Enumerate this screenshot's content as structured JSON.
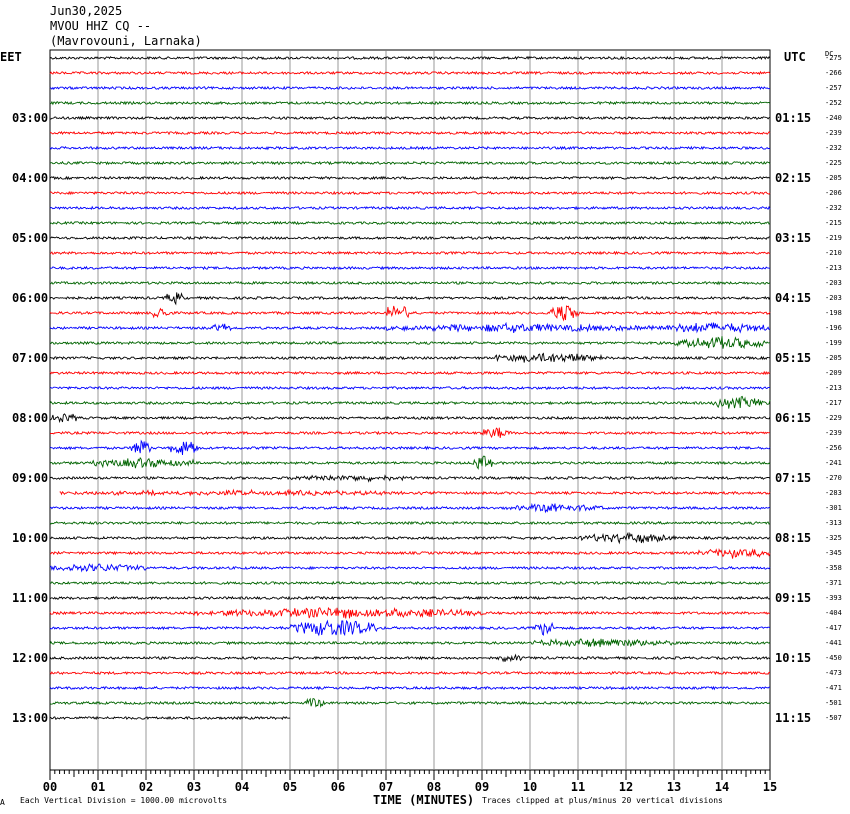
{
  "header": {
    "date": "Jun30,2025",
    "station": "MVOU HHZ CQ --",
    "location": "(Mavrovouni, Larnaka)"
  },
  "left_tz": "EET",
  "right_tz": "UTC",
  "dc_label": "DC",
  "footer": {
    "left_mark": "A",
    "division_note": "Each Vertical Division = 1000.00 microvolts",
    "xlabel": "TIME (MINUTES)",
    "clip_note": "Traces clipped at plus/minus 20 vertical divisions"
  },
  "colors": {
    "trace_cycle": [
      "#000000",
      "#ff0000",
      "#0000ff",
      "#006400"
    ],
    "grid": "#7f7f7f"
  },
  "chart_data": {
    "type": "line",
    "title": "MVOU HHZ CQ --",
    "xlabel": "TIME (MINUTES)",
    "x_ticks": [
      "00",
      "01",
      "02",
      "03",
      "04",
      "05",
      "06",
      "07",
      "08",
      "09",
      "10",
      "11",
      "12",
      "13",
      "14",
      "15"
    ],
    "xlim": [
      0,
      15
    ],
    "rows_per_hour": 4,
    "minutes_per_row": 15,
    "left_hour_labels": [
      "03:00",
      "04:00",
      "05:00",
      "06:00",
      "07:00",
      "08:00",
      "09:00",
      "10:00",
      "11:00",
      "12:00",
      "13:00"
    ],
    "right_hour_labels": [
      "01:15",
      "02:15",
      "03:15",
      "04:15",
      "05:15",
      "06:15",
      "07:15",
      "08:15",
      "09:15",
      "10:15",
      "11:15"
    ],
    "dc_offsets": [
      -275,
      -266,
      -257,
      -252,
      -240,
      -239,
      -232,
      -225,
      -205,
      -206,
      -232,
      -215,
      -219,
      -210,
      -213,
      -203,
      -203,
      -198,
      -196,
      -199,
      -205,
      -209,
      -213,
      -217,
      -229,
      -239,
      -256,
      -241,
      -270,
      -283,
      -301,
      -313,
      -325,
      -345,
      -358,
      -371,
      -393,
      -404,
      -417,
      -441,
      -450,
      -473,
      -471,
      -501,
      -507
    ],
    "last_row_end_minute": 5.0,
    "events": [
      {
        "row": 16,
        "start": 2.4,
        "end": 2.8,
        "amp": 6
      },
      {
        "row": 17,
        "start": 2.1,
        "end": 2.5,
        "amp": 7
      },
      {
        "row": 17,
        "start": 7.0,
        "end": 7.5,
        "amp": 10
      },
      {
        "row": 17,
        "start": 10.4,
        "end": 11.0,
        "amp": 9
      },
      {
        "row": 18,
        "start": 3.4,
        "end": 3.8,
        "amp": 5
      },
      {
        "row": 18,
        "start": 7.0,
        "end": 12.5,
        "amp": 4
      },
      {
        "row": 18,
        "start": 12.5,
        "end": 15.0,
        "amp": 5
      },
      {
        "row": 19,
        "start": 13.0,
        "end": 15.0,
        "amp": 6
      },
      {
        "row": 20,
        "start": 9.2,
        "end": 11.5,
        "amp": 5
      },
      {
        "row": 23,
        "start": 13.8,
        "end": 15.0,
        "amp": 6
      },
      {
        "row": 24,
        "start": 0.0,
        "end": 0.6,
        "amp": 5
      },
      {
        "row": 25,
        "start": 9.0,
        "end": 9.6,
        "amp": 6
      },
      {
        "row": 26,
        "start": 1.7,
        "end": 2.1,
        "amp": 10
      },
      {
        "row": 26,
        "start": 2.5,
        "end": 3.1,
        "amp": 9
      },
      {
        "row": 27,
        "start": 0.9,
        "end": 3.0,
        "amp": 5
      },
      {
        "row": 27,
        "start": 8.8,
        "end": 9.2,
        "amp": 9
      },
      {
        "row": 28,
        "start": 5.0,
        "end": 7.5,
        "amp": 3
      },
      {
        "row": 29,
        "start": 0.2,
        "end": 8.0,
        "amp": 2
      },
      {
        "row": 30,
        "start": 9.5,
        "end": 11.5,
        "amp": 4
      },
      {
        "row": 32,
        "start": 11.0,
        "end": 13.0,
        "amp": 5
      },
      {
        "row": 33,
        "start": 13.5,
        "end": 15.0,
        "amp": 5
      },
      {
        "row": 34,
        "start": 0.0,
        "end": 2.0,
        "amp": 4
      },
      {
        "row": 37,
        "start": 3.0,
        "end": 9.0,
        "amp": 5
      },
      {
        "row": 38,
        "start": 5.0,
        "end": 6.8,
        "amp": 9
      },
      {
        "row": 38,
        "start": 10.1,
        "end": 10.5,
        "amp": 8
      },
      {
        "row": 39,
        "start": 10.0,
        "end": 13.0,
        "amp": 4
      },
      {
        "row": 40,
        "start": 9.3,
        "end": 9.8,
        "amp": 4
      },
      {
        "row": 43,
        "start": 5.3,
        "end": 5.7,
        "amp": 5
      }
    ]
  }
}
